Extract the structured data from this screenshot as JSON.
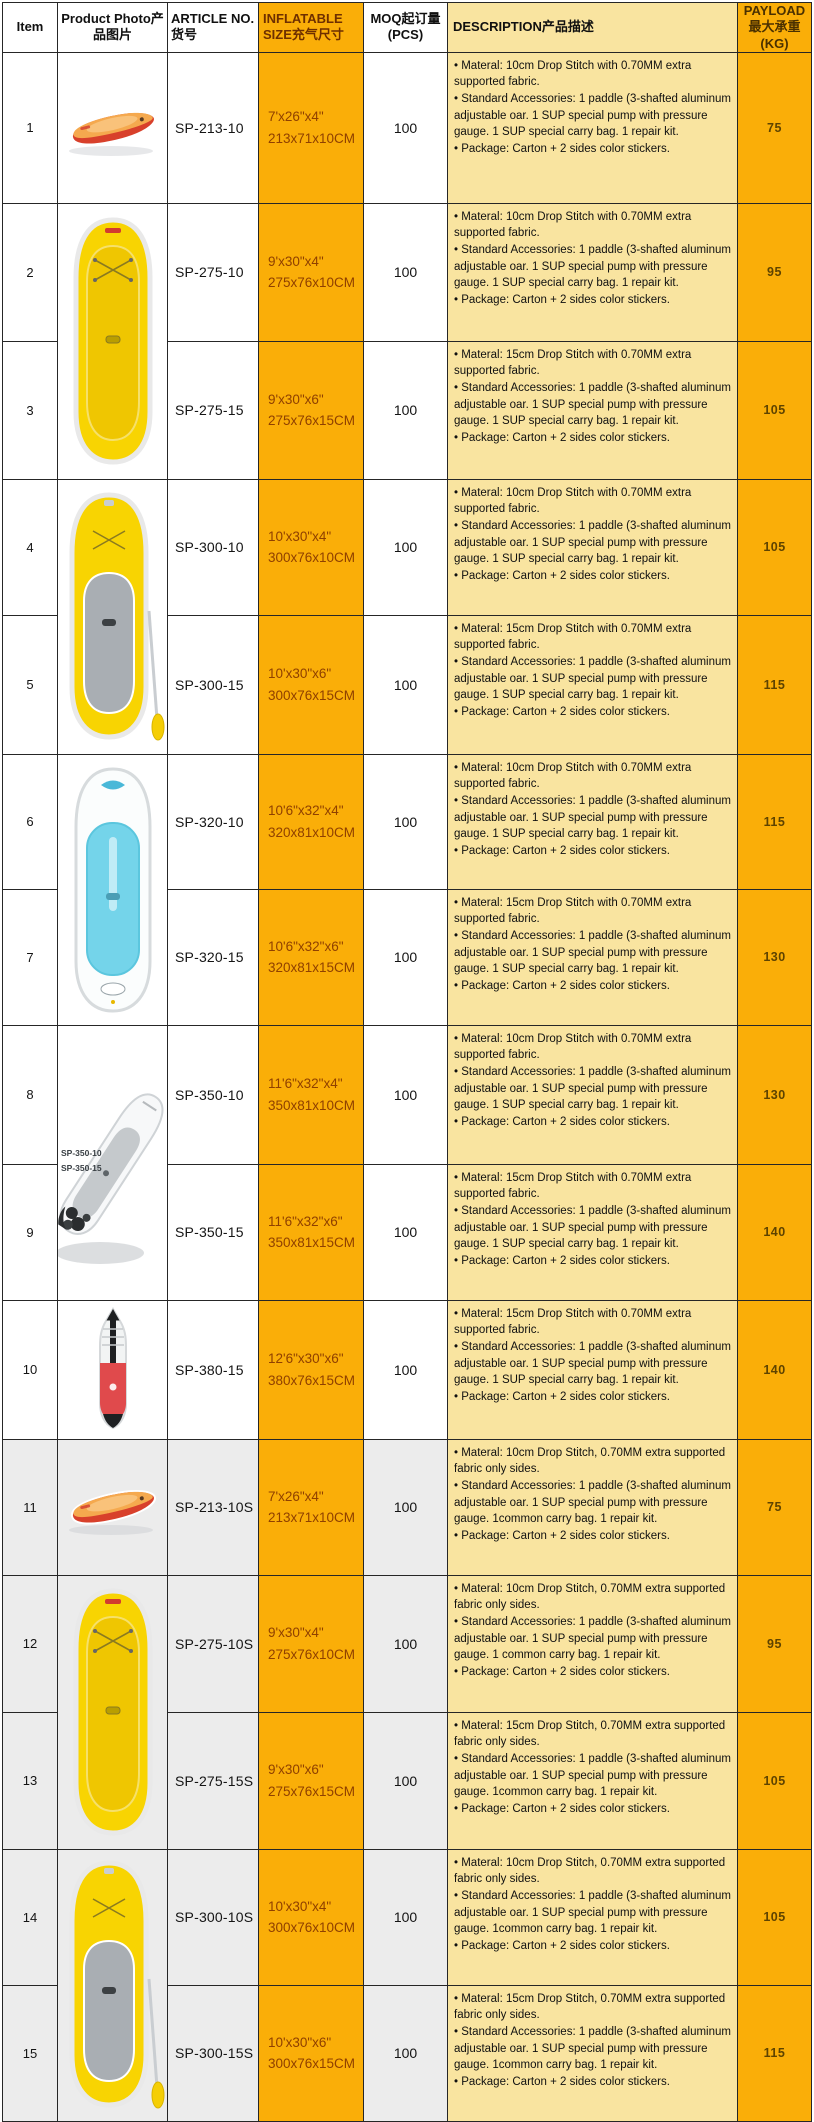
{
  "table": {
    "header": {
      "item": "Item",
      "photo": "Product Photo产品图片",
      "article": "ARTICLE NO. 货号",
      "size": "INFLATABLE SIZE充气尺寸",
      "moq": "MOQ起订量 (PCS)",
      "description": "DESCRIPTION产品描述",
      "payload": "PAYLOAD 最大承重 (KG)"
    },
    "colors": {
      "accent_orange": "#FAAE08",
      "description_yellow": "#F9E4A0",
      "size_text_brown": "#8F4000",
      "payload_text_brown": "#5E4300",
      "shaded_row_gray": "#ECECEC",
      "border": "#262626"
    },
    "rows": [
      {
        "item": "1",
        "article": "SP-213-10",
        "size_imperial": "7'x26\"x4\"",
        "size_metric": "213x71x10CM",
        "moq": "100",
        "payload": "75",
        "shaded": false,
        "photo": {
          "type": "orange-diagonal-board",
          "rowspan": 1
        },
        "description": [
          "• Materal: 10cm Drop Stitch with 0.70MM extra supported fabric.",
          "• Standard Accessories: 1 paddle (3-shafted aluminum adjustable oar. 1 SUP special pump with pressure gauge. 1 SUP special carry bag.  1 repair kit.",
          "• Package: Carton + 2 sides color stickers."
        ]
      },
      {
        "item": "2",
        "article": "SP-275-10",
        "size_imperial": "9'x30\"x4\"",
        "size_metric": "275x76x10CM",
        "moq": "100",
        "payload": "95",
        "shaded": false,
        "photo": {
          "type": "yellow-board",
          "rowspan": 2
        },
        "description": [
          "• Materal: 10cm Drop Stitch with 0.70MM extra supported fabric.",
          "• Standard Accessories: 1 paddle (3-shafted aluminum adjustable oar. 1 SUP special pump with pressure gauge. 1 SUP special carry bag.  1 repair kit.",
          "• Package: Carton + 2 sides color stickers."
        ]
      },
      {
        "item": "3",
        "article": "SP-275-15",
        "size_imperial": "9'x30\"x6\"",
        "size_metric": "275x76x15CM",
        "moq": "100",
        "payload": "105",
        "shaded": false,
        "photo": null,
        "description": [
          "• Materal: 15cm Drop Stitch with 0.70MM extra supported fabric.",
          "• Standard Accessories: 1 paddle (3-shafted aluminum adjustable oar. 1 SUP special pump with pressure gauge. 1 SUP special carry bag.  1 repair kit.",
          "• Package: Carton + 2 sides color stickers."
        ]
      },
      {
        "item": "4",
        "article": "SP-300-10",
        "size_imperial": "10'x30\"x4\"",
        "size_metric": "300x76x10CM",
        "moq": "100",
        "payload": "105",
        "shaded": false,
        "photo": {
          "type": "yellow-gray-board",
          "rowspan": 2
        },
        "description": [
          "• Materal: 10cm Drop Stitch with 0.70MM extra supported fabric.",
          "• Standard Accessories: 1 paddle (3-shafted aluminum adjustable oar. 1 SUP special pump with pressure gauge. 1 SUP special carry bag.  1 repair kit.",
          "• Package: Carton + 2 sides color stickers."
        ]
      },
      {
        "item": "5",
        "article": "SP-300-15",
        "size_imperial": "10'x30\"x6\"",
        "size_metric": "300x76x15CM",
        "moq": "100",
        "payload": "115",
        "shaded": false,
        "photo": null,
        "description": [
          "• Materal: 15cm Drop Stitch with 0.70MM extra supported fabric.",
          "• Standard Accessories: 1 paddle (3-shafted aluminum adjustable oar. 1 SUP special pump with pressure gauge. 1 SUP special carry bag.  1 repair kit.",
          "• Package: Carton + 2 sides color stickers."
        ]
      },
      {
        "item": "6",
        "article": "SP-320-10",
        "size_imperial": "10'6\"x32\"x4\"",
        "size_metric": "320x81x10CM",
        "moq": "100",
        "payload": "115",
        "shaded": false,
        "photo": {
          "type": "blue-board",
          "rowspan": 2
        },
        "description": [
          "• Materal: 10cm Drop Stitch with 0.70MM extra supported fabric.",
          "• Standard Accessories: 1 paddle (3-shafted aluminum adjustable oar. 1 SUP special pump with pressure gauge. 1 SUP special carry bag.  1 repair kit.",
          "• Package: Carton + 2 sides color stickers."
        ]
      },
      {
        "item": "7",
        "article": "SP-320-15",
        "size_imperial": "10'6\"x32\"x6\"",
        "size_metric": "320x81x15CM",
        "moq": "100",
        "payload": "130",
        "shaded": false,
        "photo": null,
        "description": [
          "• Materal: 15cm Drop Stitch with 0.70MM extra supported fabric.",
          "• Standard Accessories: 1 paddle (3-shafted aluminum adjustable oar. 1 SUP special pump with pressure gauge. 1 SUP special carry bag.  1 repair kit.",
          "• Package: Carton + 2 sides color stickers."
        ]
      },
      {
        "item": "8",
        "article": "SP-350-10",
        "size_imperial": "11'6\"x32\"x4\"",
        "size_metric": "350x81x10CM",
        "moq": "100",
        "payload": "130",
        "shaded": false,
        "photo": {
          "type": "white-diagonal-board",
          "rowspan": 2,
          "labels": [
            "SP-350-10",
            "SP-350-15"
          ]
        },
        "description": [
          "• Materal: 10cm Drop Stitch with 0.70MM extra supported fabric.",
          "• Standard Accessories: 1 paddle (3-shafted aluminum adjustable oar. 1 SUP special pump with pressure gauge. 1 SUP special carry bag.  1 repair kit.",
          "• Package: Carton + 2 sides color stickers."
        ]
      },
      {
        "item": "9",
        "article": "SP-350-15",
        "size_imperial": "11'6\"x32\"x6\"",
        "size_metric": "350x81x15CM",
        "moq": "100",
        "payload": "140",
        "shaded": false,
        "photo": null,
        "description": [
          "• Materal: 15cm Drop Stitch with 0.70MM extra supported fabric.",
          "• Standard Accessories: 1 paddle (3-shafted aluminum adjustable oar. 1 SUP special pump with pressure gauge. 1 SUP special carry bag.  1 repair kit.",
          "• Package: Carton + 2 sides color stickers."
        ]
      },
      {
        "item": "10",
        "article": "SP-380-15",
        "size_imperial": "12'6\"x30\"x6\"",
        "size_metric": "380x76x15CM",
        "moq": "100",
        "payload": "140",
        "shaded": false,
        "photo": {
          "type": "red-touring-board",
          "rowspan": 1
        },
        "description": [
          "• Materal: 15cm Drop Stitch with 0.70MM extra supported fabric.",
          "• Standard Accessories: 1 paddle (3-shafted aluminum adjustable oar. 1 SUP special pump with pressure gauge. 1 SUP special carry bag.  1 repair kit.",
          "• Package: Carton + 2 sides color stickers."
        ]
      },
      {
        "item": "11",
        "article": "SP-213-10S",
        "size_imperial": "7'x26\"x4\"",
        "size_metric": "213x71x10CM",
        "moq": "100",
        "payload": "75",
        "shaded": true,
        "photo": {
          "type": "orange-diagonal-board",
          "rowspan": 1
        },
        "description": [
          "• Materal: 10cm Drop Stitch,  0.70MM extra supported fabric only sides.",
          "• Standard Accessories: 1 paddle (3-shafted aluminum adjustable oar. 1 SUP special pump with pressure gauge. 1common carry bag.  1 repair kit.",
          "• Package: Carton + 2 sides color stickers."
        ]
      },
      {
        "item": "12",
        "article": "SP-275-10S",
        "size_imperial": "9'x30\"x4\"",
        "size_metric": "275x76x10CM",
        "moq": "100",
        "payload": "95",
        "shaded": true,
        "photo": {
          "type": "yellow-board",
          "rowspan": 2
        },
        "description": [
          "• Materal: 10cm Drop Stitch,  0.70MM extra supported fabric only sides.",
          "• Standard Accessories: 1 paddle (3-shafted aluminum adjustable oar. 1 SUP special pump with pressure gauge. 1 common carry bag.  1 repair kit.",
          "• Package: Carton + 2 sides color stickers."
        ]
      },
      {
        "item": "13",
        "article": "SP-275-15S",
        "size_imperial": "9'x30\"x6\"",
        "size_metric": "275x76x15CM",
        "moq": "100",
        "payload": "105",
        "shaded": true,
        "photo": null,
        "description": [
          "• Materal: 15cm Drop Stitch,  0.70MM extra supported fabric only sides.",
          "• Standard Accessories: 1 paddle (3-shafted aluminum adjustable oar. 1 SUP special pump with pressure gauge. 1common carry bag.  1 repair kit.",
          "• Package: Carton + 2 sides color stickers."
        ]
      },
      {
        "item": "14",
        "article": "SP-300-10S",
        "size_imperial": "10'x30\"x4\"",
        "size_metric": "300x76x10CM",
        "moq": "100",
        "payload": "105",
        "shaded": true,
        "photo": {
          "type": "yellow-gray-board",
          "rowspan": 2
        },
        "description": [
          "• Materal: 10cm Drop Stitch,  0.70MM extra supported fabric only sides.",
          "• Standard Accessories: 1 paddle (3-shafted aluminum adjustable oar. 1 SUP special pump with pressure gauge. 1common carry bag.  1 repair kit.",
          "• Package: Carton + 2 sides color stickers."
        ]
      },
      {
        "item": "15",
        "article": "SP-300-15S",
        "size_imperial": "10'x30\"x6\"",
        "size_metric": "300x76x15CM",
        "moq": "100",
        "payload": "115",
        "shaded": true,
        "photo": null,
        "description": [
          "• Materal: 15cm Drop Stitch,  0.70MM extra supported fabric only sides.",
          "• Standard Accessories: 1 paddle (3-shafted aluminum adjustable oar. 1 SUP special pump with pressure gauge. 1common carry bag.  1 repair kit.",
          "• Package: Carton + 2 sides color stickers."
        ]
      }
    ]
  }
}
